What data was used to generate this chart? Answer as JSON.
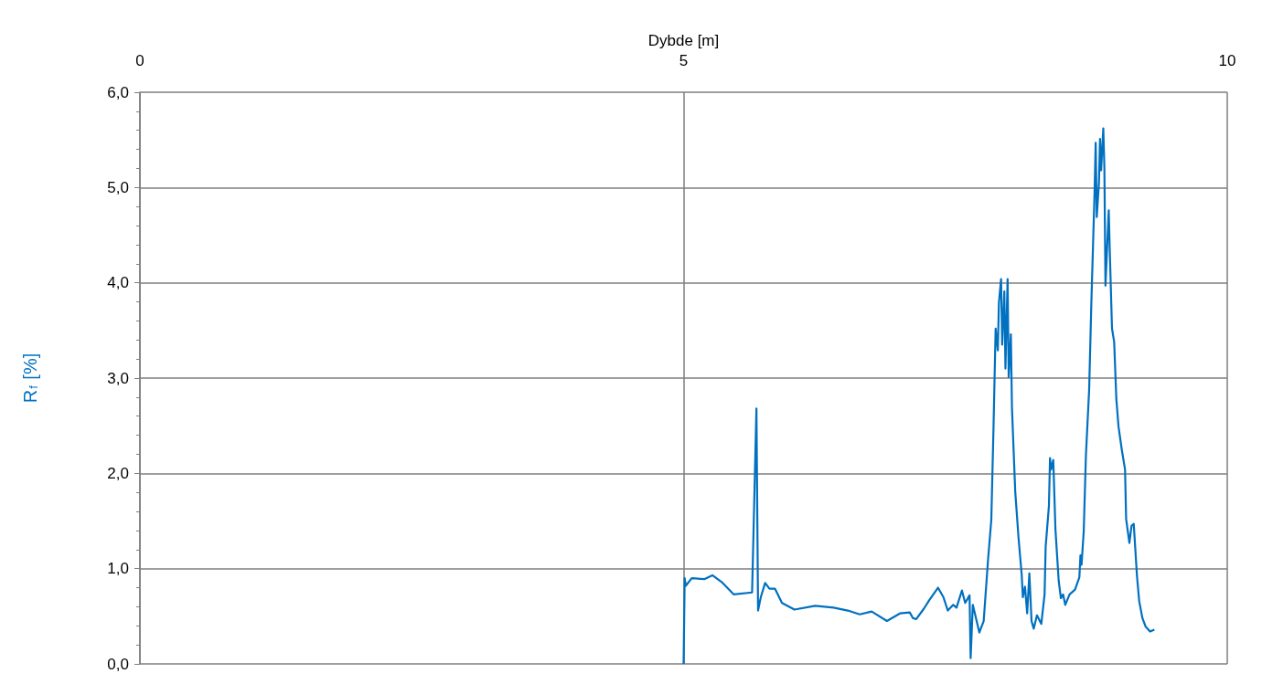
{
  "chart_data": {
    "type": "line",
    "xlabel": "Dybde [m]",
    "ylabel": "R$_{f}$ [%]",
    "xlim": [
      0,
      10
    ],
    "xticks": [
      0,
      5,
      10
    ],
    "ylim": [
      0,
      6
    ],
    "yticks": [
      {
        "value": 0,
        "label": "0,0"
      },
      {
        "value": 1,
        "label": "1,0"
      },
      {
        "value": 2,
        "label": "2,0"
      },
      {
        "value": 3,
        "label": "3,0"
      },
      {
        "value": 4,
        "label": "4,0"
      },
      {
        "value": 5,
        "label": "5,0"
      },
      {
        "value": 6,
        "label": "6,0"
      }
    ],
    "grid": true,
    "marker": "none",
    "line_style": "solid",
    "series": [
      {
        "color": "#0070c0",
        "x": [
          5.0,
          5.01,
          5.02,
          5.075,
          5.19,
          5.265,
          5.35,
          5.46,
          5.63,
          5.67,
          5.685,
          5.71,
          5.75,
          5.79,
          5.84,
          5.905,
          6.02,
          6.21,
          6.38,
          6.51,
          6.62,
          6.73,
          6.87,
          6.99,
          7.08,
          7.11,
          7.14,
          7.21,
          7.26,
          7.34,
          7.39,
          7.43,
          7.48,
          7.51,
          7.56,
          7.59,
          7.63,
          7.64,
          7.66,
          7.72,
          7.76,
          7.8,
          7.83,
          7.85,
          7.87,
          7.89,
          7.9,
          7.92,
          7.93,
          7.95,
          7.96,
          7.98,
          7.99,
          8.01,
          8.02,
          8.05,
          8.08,
          8.11,
          8.12,
          8.14,
          8.16,
          8.18,
          8.2,
          8.22,
          8.25,
          8.29,
          8.32,
          8.33,
          8.36,
          8.37,
          8.38,
          8.4,
          8.42,
          8.45,
          8.47,
          8.49,
          8.51,
          8.55,
          8.6,
          8.64,
          8.65,
          8.66,
          8.68,
          8.7,
          8.73,
          8.75,
          8.78,
          8.79,
          8.8,
          8.82,
          8.83,
          8.84,
          8.86,
          8.87,
          8.88,
          8.91,
          8.92,
          8.94,
          8.96,
          8.98,
          9.0,
          9.03,
          9.06,
          9.07,
          9.1,
          9.12,
          9.14,
          9.17,
          9.19,
          9.22,
          9.25,
          9.29,
          9.33
        ],
        "values": [
          0.0,
          0.9,
          0.82,
          0.9,
          0.89,
          0.93,
          0.86,
          0.73,
          0.75,
          2.68,
          0.56,
          0.7,
          0.85,
          0.79,
          0.79,
          0.64,
          0.57,
          0.61,
          0.59,
          0.56,
          0.52,
          0.55,
          0.45,
          0.53,
          0.54,
          0.48,
          0.47,
          0.58,
          0.67,
          0.8,
          0.7,
          0.56,
          0.62,
          0.59,
          0.77,
          0.64,
          0.72,
          0.06,
          0.62,
          0.33,
          0.45,
          1.09,
          1.51,
          2.46,
          3.52,
          3.29,
          3.79,
          4.04,
          3.35,
          3.91,
          3.1,
          4.04,
          3.01,
          3.46,
          2.69,
          1.81,
          1.33,
          0.93,
          0.7,
          0.81,
          0.53,
          0.95,
          0.45,
          0.37,
          0.51,
          0.42,
          0.73,
          1.23,
          1.66,
          2.16,
          2.04,
          2.14,
          1.41,
          0.87,
          0.69,
          0.73,
          0.62,
          0.73,
          0.78,
          0.91,
          1.14,
          1.04,
          1.39,
          2.18,
          2.88,
          3.78,
          4.96,
          5.47,
          4.69,
          5.05,
          5.51,
          5.18,
          5.62,
          5.21,
          3.97,
          4.76,
          4.32,
          3.52,
          3.38,
          2.78,
          2.49,
          2.25,
          2.04,
          1.52,
          1.27,
          1.45,
          1.47,
          0.92,
          0.66,
          0.48,
          0.39,
          0.34,
          0.36
        ]
      }
    ]
  }
}
